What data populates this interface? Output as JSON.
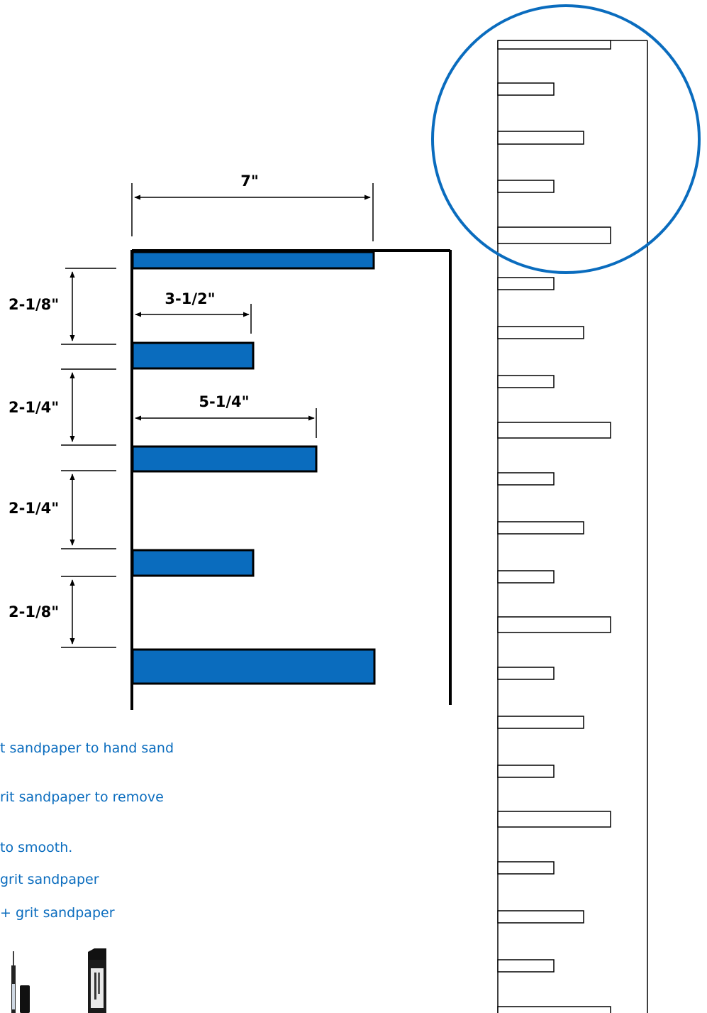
{
  "colors": {
    "accent_blue": "#0a6cbe",
    "outline": "#000000",
    "background": "#ffffff"
  },
  "dimensions": {
    "top_width": "7\"",
    "short_width": "3-1/2\"",
    "mid_width": "5-1/4\"",
    "gap_1": "2-1/8\"",
    "gap_2": "2-1/4\"",
    "gap_3": "2-1/4\"",
    "gap_4": "2-1/8\""
  },
  "instructions": [
    "t sandpaper to hand sand",
    "rit sandpaper to remove",
    "to smooth.",
    "grit sandpaper",
    "+ grit sandpaper"
  ],
  "icons": [
    "fine-marker-icon",
    "chisel-marker-icon"
  ]
}
